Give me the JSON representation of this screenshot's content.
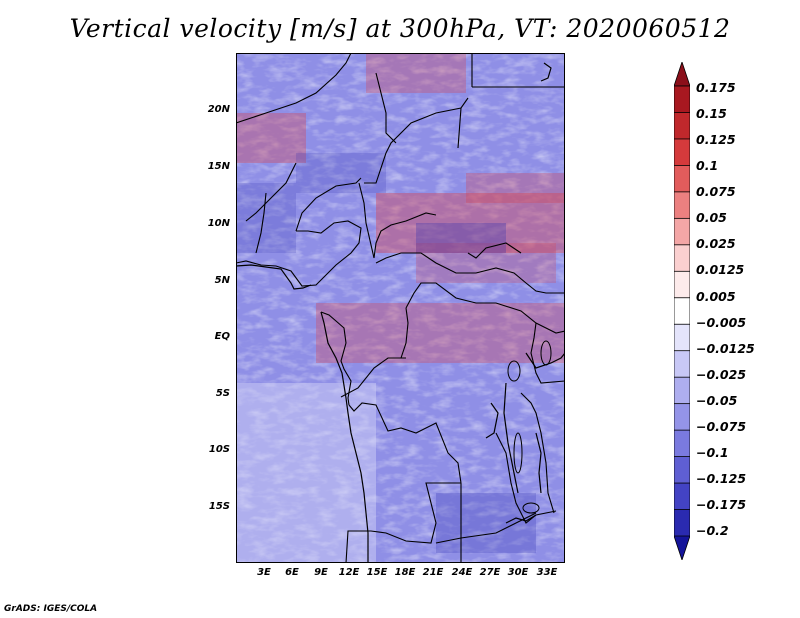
{
  "title": "Vertical velocity [m/s] at 300hPa, VT: 2020060512",
  "footer": "GrADS: IGES/COLA",
  "map": {
    "lat_labels": [
      "20N",
      "15N",
      "10N",
      "5N",
      "EQ",
      "5S",
      "10S",
      "15S"
    ],
    "lon_labels": [
      "3E",
      "6E",
      "9E",
      "12E",
      "15E",
      "18E",
      "21E",
      "24E",
      "27E",
      "30E",
      "33E"
    ],
    "variable": "vertical velocity",
    "level": "300hPa",
    "units": "m/s"
  },
  "colorbar": {
    "labels": [
      "0.175",
      "0.15",
      "0.125",
      "0.1",
      "0.075",
      "0.05",
      "0.025",
      "0.0125",
      "0.005",
      "−0.005",
      "−0.0125",
      "−0.025",
      "−0.05",
      "−0.075",
      "−0.1",
      "−0.125",
      "−0.175",
      "−0.2"
    ],
    "colors": [
      "#8b0f1a",
      "#a81820",
      "#c0282c",
      "#d53a3c",
      "#e25c5c",
      "#ec8080",
      "#f4a6a6",
      "#fbd0d0",
      "#fdebeb",
      "#ffffff",
      "#e4e4fb",
      "#c8c8f6",
      "#aeaeef",
      "#9494e8",
      "#7a7adf",
      "#5f5fd3",
      "#4343c4",
      "#2a2ab0",
      "#14149a"
    ]
  }
}
